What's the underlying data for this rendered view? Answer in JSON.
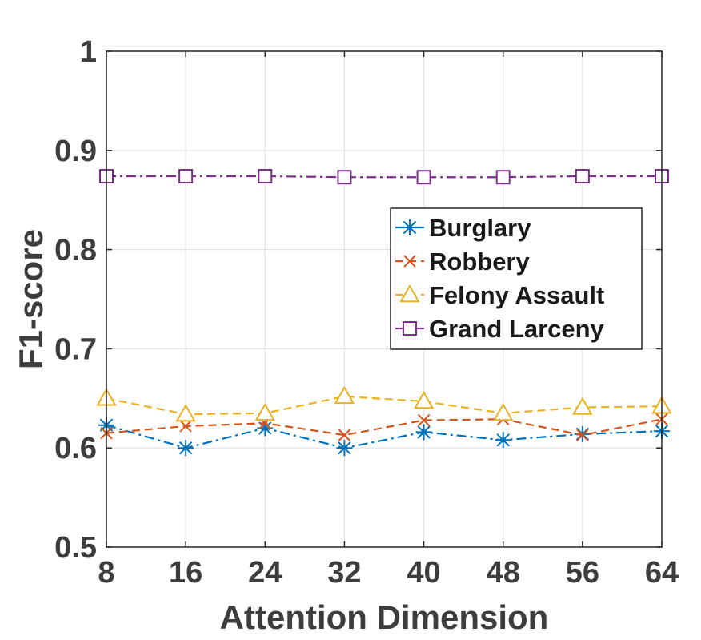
{
  "chart_data": {
    "type": "line",
    "title": "",
    "xlabel": "Attention Dimension",
    "ylabel": "F1-score",
    "x": [
      8,
      16,
      24,
      32,
      40,
      48,
      56,
      64
    ],
    "xticks": [
      "8",
      "16",
      "24",
      "32",
      "40",
      "48",
      "56",
      "64"
    ],
    "yticks": [
      "0.5",
      "0.6",
      "0.7",
      "0.8",
      "0.9",
      "1"
    ],
    "xlim": [
      8,
      64
    ],
    "ylim": [
      0.5,
      1.0
    ],
    "grid": true,
    "legend_position": "right",
    "series": [
      {
        "name": "Burglary",
        "values": [
          0.623,
          0.6,
          0.62,
          0.6,
          0.616,
          0.608,
          0.614,
          0.617
        ],
        "color": "#0072bd",
        "marker": "asterisk",
        "line": "dashdot"
      },
      {
        "name": "Robbery",
        "values": [
          0.615,
          0.622,
          0.625,
          0.613,
          0.628,
          0.629,
          0.613,
          0.629
        ],
        "color": "#d95319",
        "marker": "x",
        "line": "dashed"
      },
      {
        "name": "Felony Assault",
        "values": [
          0.65,
          0.634,
          0.635,
          0.652,
          0.647,
          0.635,
          0.641,
          0.642
        ],
        "color": "#edb120",
        "marker": "triangle",
        "line": "dashed"
      },
      {
        "name": "Grand Larceny",
        "values": [
          0.874,
          0.874,
          0.874,
          0.873,
          0.873,
          0.873,
          0.874,
          0.874
        ],
        "color": "#7e2f8e",
        "marker": "square",
        "line": "dashdot"
      }
    ]
  }
}
